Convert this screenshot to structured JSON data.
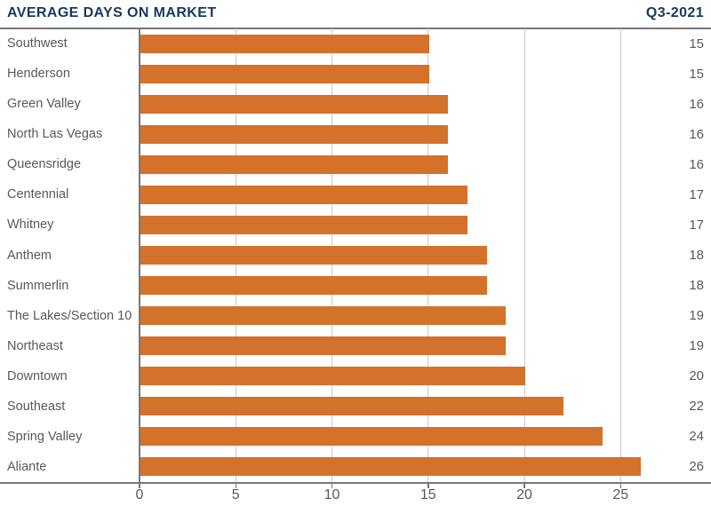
{
  "header": {
    "title": "AVERAGE DAYS ON MARKET",
    "quarter": "Q3-2021"
  },
  "colors": {
    "title": "#16395e",
    "bar": "#d4712b",
    "text": "#58595b",
    "gridline": "#c9cacc",
    "axis": "#77787b",
    "background": "#ffffff"
  },
  "chart_data": {
    "type": "bar",
    "orientation": "horizontal",
    "title": "AVERAGE DAYS ON MARKET",
    "subtitle": "Q3-2021",
    "categories": [
      "Southwest",
      "Henderson",
      "Green Valley",
      "North Las Vegas",
      "Queensridge",
      "Centennial",
      "Whitney",
      "Anthem",
      "Summerlin",
      "The Lakes/Section 10",
      "Northeast",
      "Downtown",
      "Southeast",
      "Spring Valley",
      "Aliante"
    ],
    "values": [
      15,
      15,
      16,
      16,
      16,
      17,
      17,
      18,
      18,
      19,
      19,
      20,
      22,
      24,
      26
    ],
    "xlabel": "",
    "ylabel": "",
    "xticks": [
      0,
      5,
      10,
      15,
      20,
      25
    ],
    "xlim": [
      0,
      29.7
    ],
    "grid": true,
    "legend": false,
    "value_label_position": "right-edge"
  }
}
